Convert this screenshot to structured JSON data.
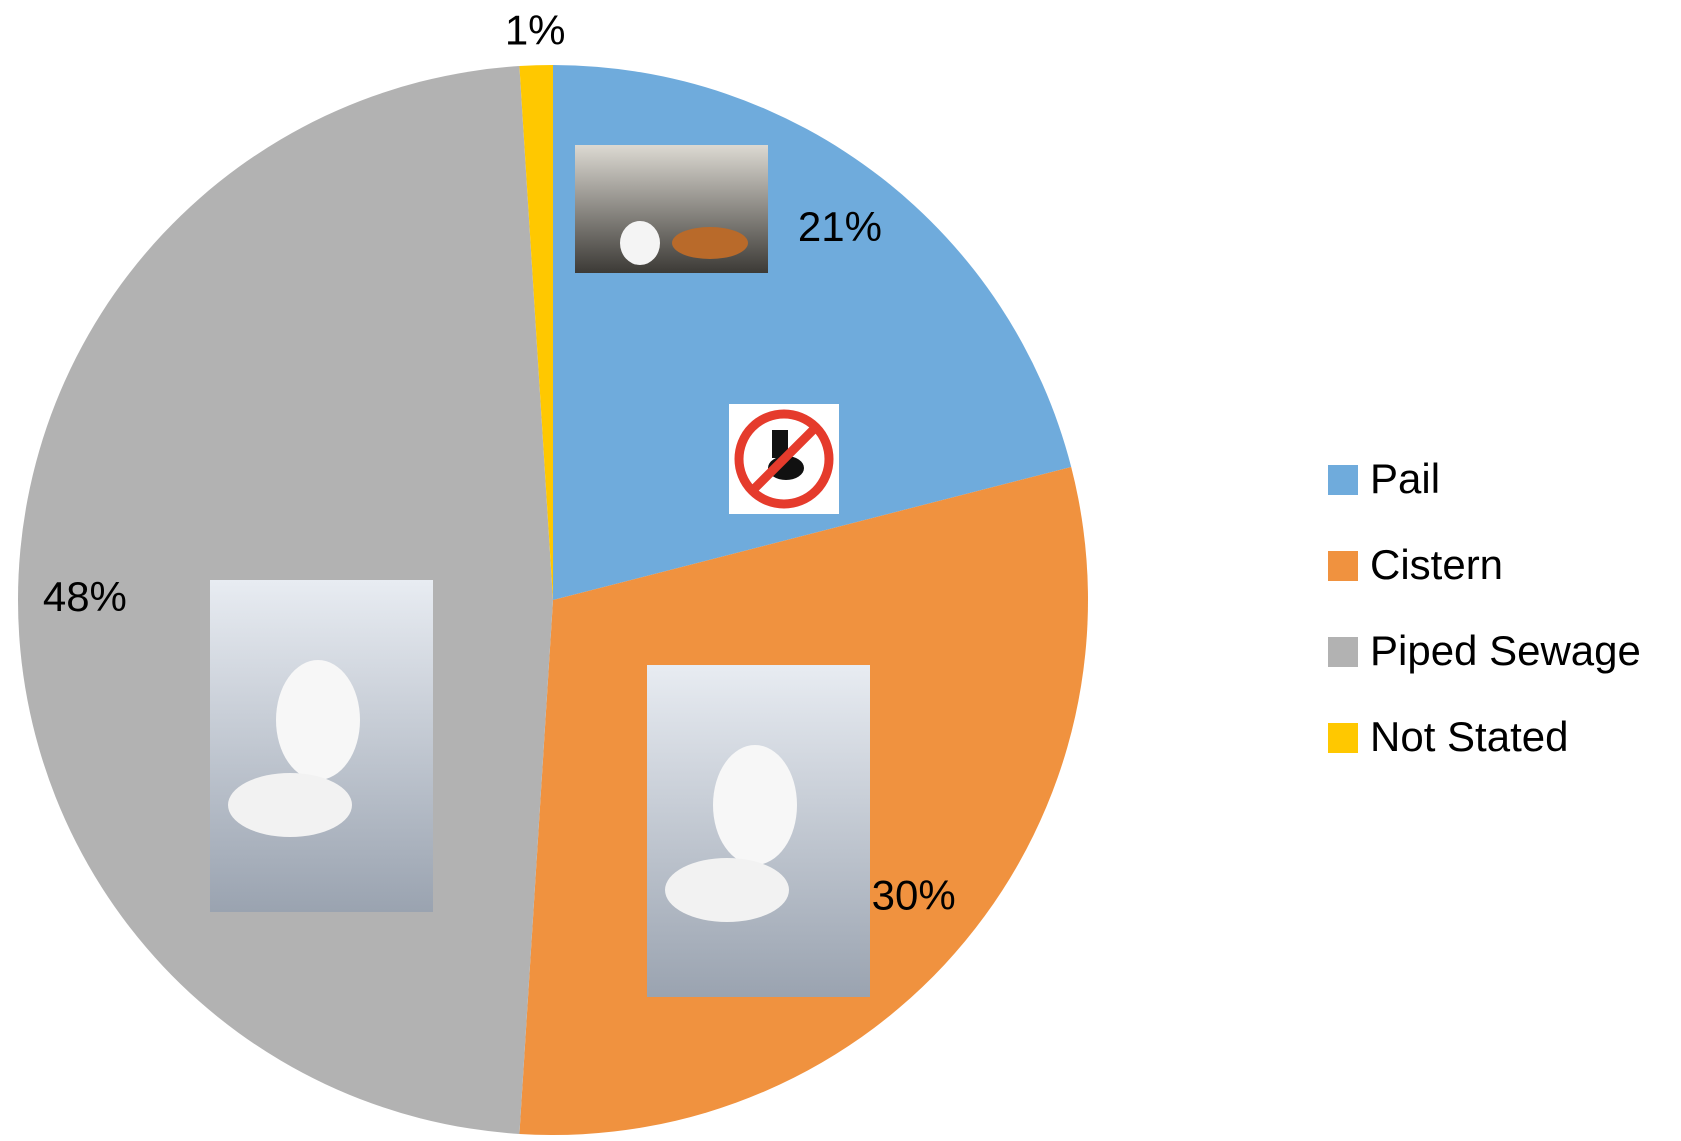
{
  "chart_data": {
    "type": "pie",
    "categories": [
      "Pail",
      "Cistern",
      "Piped Sewage",
      "Not Stated"
    ],
    "values": [
      21,
      30,
      48,
      1
    ],
    "value_labels": [
      "21%",
      "30%",
      "48%",
      "1%"
    ],
    "colors": [
      "#6FABDC",
      "#F0923F",
      "#B2B2B2",
      "#FFC800"
    ],
    "legend": "right"
  }
}
